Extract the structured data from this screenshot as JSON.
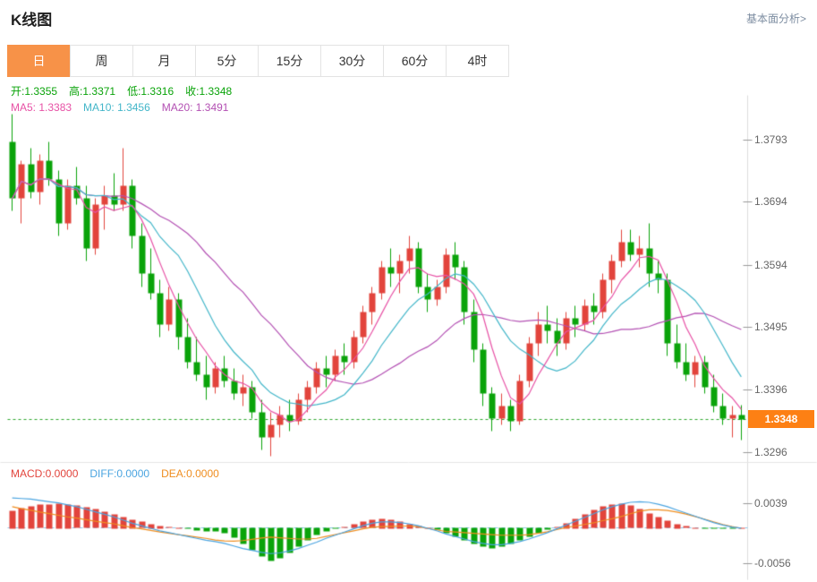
{
  "header": {
    "title": "K线图",
    "link_label": "基本面分析>"
  },
  "tabs": {
    "active_index": 0,
    "items": [
      {
        "key": "day",
        "label": "日"
      },
      {
        "key": "week",
        "label": "周"
      },
      {
        "key": "month",
        "label": "月"
      },
      {
        "key": "5min",
        "label": "5分"
      },
      {
        "key": "15min",
        "label": "15分"
      },
      {
        "key": "30min",
        "label": "30分"
      },
      {
        "key": "60min",
        "label": "60分"
      },
      {
        "key": "4hour",
        "label": "4时"
      }
    ]
  },
  "ohlc_legend": {
    "color": "#0aa30a",
    "items": [
      {
        "key": "open-value",
        "label": "开:",
        "value": "1.3355"
      },
      {
        "key": "high-value",
        "label": "高:",
        "value": "1.3371"
      },
      {
        "key": "low-value",
        "label": "低:",
        "value": "1.3316"
      },
      {
        "key": "close-value",
        "label": "收:",
        "value": "1.3348"
      }
    ]
  },
  "ma_legend": {
    "items": [
      {
        "key": "ma5-value",
        "label": "MA5: ",
        "value": "1.3383",
        "color": "#e751a5"
      },
      {
        "key": "ma10-value",
        "label": "MA10: ",
        "value": "1.3456",
        "color": "#43b6c9"
      },
      {
        "key": "ma20-value",
        "label": "MA20: ",
        "value": "1.3491",
        "color": "#b350b3"
      }
    ]
  },
  "macd_legend": {
    "items": [
      {
        "key": "macd-value",
        "label": "MACD:",
        "value": "0.0000",
        "color": "#e2443c"
      },
      {
        "key": "diff-value",
        "label": "DIFF:",
        "value": "0.0000",
        "color": "#4aa4e0"
      },
      {
        "key": "dea-value",
        "label": "DEA:",
        "value": "0.0000",
        "color": "#ef8d1f"
      }
    ]
  },
  "price_axis": {
    "ticks": [
      {
        "text": "1.3793",
        "value": 1.3793
      },
      {
        "text": "1.3694",
        "value": 1.3694
      },
      {
        "text": "1.3594",
        "value": 1.3594
      },
      {
        "text": "1.3495",
        "value": 1.3495
      },
      {
        "text": "1.3396",
        "value": 1.3396
      },
      {
        "text": "1.3296",
        "value": 1.3296
      }
    ],
    "current": {
      "text": "1.3348",
      "value": 1.3348
    }
  },
  "macd_axis": {
    "ticks": [
      {
        "text": "0.0039",
        "value": 0.0039
      },
      {
        "text": "-0.0056",
        "value": -0.0056
      }
    ]
  },
  "colors": {
    "up": "#e2443c",
    "down": "#0aa30a",
    "ma5": "#e751a5",
    "ma10": "#43b6c9",
    "ma20": "#b350b3",
    "diff": "#4aa4e0",
    "dea": "#ef8d1f",
    "dotted": "#2ba52b",
    "badge": "#fd8014",
    "tab_active": "#f79248",
    "axis_text": "#666666"
  },
  "chart_data": {
    "type": "candlestick",
    "title": "K线图",
    "period": "日",
    "last_ohlc": {
      "open": 1.3355,
      "high": 1.3371,
      "low": 1.3316,
      "close": 1.3348
    },
    "price_range": [
      1.328,
      1.385
    ],
    "y_ticks": [
      1.3793,
      1.3694,
      1.3594,
      1.3495,
      1.3396,
      1.3296
    ],
    "candles": [
      [
        1.379,
        1.3835,
        1.368,
        1.37
      ],
      [
        1.37,
        1.376,
        1.366,
        1.3755
      ],
      [
        1.3755,
        1.378,
        1.37,
        1.371
      ],
      [
        1.371,
        1.377,
        1.369,
        1.376
      ],
      [
        1.376,
        1.379,
        1.372,
        1.373
      ],
      [
        1.373,
        1.3745,
        1.364,
        1.366
      ],
      [
        1.366,
        1.373,
        1.365,
        1.372
      ],
      [
        1.372,
        1.375,
        1.369,
        1.37
      ],
      [
        1.37,
        1.372,
        1.36,
        1.362
      ],
      [
        1.362,
        1.37,
        1.361,
        1.369
      ],
      [
        1.369,
        1.372,
        1.365,
        1.3705
      ],
      [
        1.3705,
        1.374,
        1.368,
        1.369
      ],
      [
        1.369,
        1.378,
        1.368,
        1.372
      ],
      [
        1.372,
        1.373,
        1.362,
        1.364
      ],
      [
        1.364,
        1.366,
        1.356,
        1.358
      ],
      [
        1.358,
        1.362,
        1.354,
        1.355
      ],
      [
        1.355,
        1.357,
        1.348,
        1.35
      ],
      [
        1.35,
        1.356,
        1.349,
        1.354
      ],
      [
        1.354,
        1.355,
        1.346,
        1.348
      ],
      [
        1.348,
        1.351,
        1.343,
        1.344
      ],
      [
        1.344,
        1.348,
        1.341,
        1.342
      ],
      [
        1.342,
        1.345,
        1.338,
        1.34
      ],
      [
        1.34,
        1.344,
        1.339,
        1.343
      ],
      [
        1.343,
        1.345,
        1.34,
        1.341
      ],
      [
        1.341,
        1.343,
        1.338,
        1.339
      ],
      [
        1.339,
        1.342,
        1.337,
        1.34
      ],
      [
        1.34,
        1.341,
        1.335,
        1.336
      ],
      [
        1.336,
        1.338,
        1.33,
        1.332
      ],
      [
        1.332,
        1.336,
        1.329,
        1.334
      ],
      [
        1.334,
        1.337,
        1.332,
        1.3355
      ],
      [
        1.3355,
        1.338,
        1.333,
        1.3345
      ],
      [
        1.3345,
        1.339,
        1.334,
        1.338
      ],
      [
        1.338,
        1.341,
        1.336,
        1.34
      ],
      [
        1.34,
        1.344,
        1.339,
        1.343
      ],
      [
        1.343,
        1.345,
        1.34,
        1.342
      ],
      [
        1.342,
        1.346,
        1.341,
        1.345
      ],
      [
        1.345,
        1.347,
        1.342,
        1.344
      ],
      [
        1.344,
        1.349,
        1.343,
        1.348
      ],
      [
        1.348,
        1.353,
        1.347,
        1.352
      ],
      [
        1.352,
        1.356,
        1.35,
        1.355
      ],
      [
        1.355,
        1.36,
        1.354,
        1.359
      ],
      [
        1.359,
        1.362,
        1.356,
        1.358
      ],
      [
        1.358,
        1.361,
        1.355,
        1.36
      ],
      [
        1.36,
        1.364,
        1.358,
        1.362
      ],
      [
        1.362,
        1.363,
        1.355,
        1.356
      ],
      [
        1.356,
        1.358,
        1.352,
        1.354
      ],
      [
        1.354,
        1.357,
        1.353,
        1.356
      ],
      [
        1.356,
        1.362,
        1.355,
        1.361
      ],
      [
        1.361,
        1.363,
        1.357,
        1.359
      ],
      [
        1.359,
        1.36,
        1.35,
        1.352
      ],
      [
        1.352,
        1.354,
        1.344,
        1.346
      ],
      [
        1.346,
        1.347,
        1.337,
        1.339
      ],
      [
        1.339,
        1.34,
        1.333,
        1.335
      ],
      [
        1.335,
        1.339,
        1.334,
        1.337
      ],
      [
        1.337,
        1.338,
        1.333,
        1.3345
      ],
      [
        1.3345,
        1.342,
        1.334,
        1.341
      ],
      [
        1.341,
        1.348,
        1.34,
        1.347
      ],
      [
        1.347,
        1.352,
        1.345,
        1.35
      ],
      [
        1.35,
        1.353,
        1.347,
        1.349
      ],
      [
        1.349,
        1.351,
        1.345,
        1.347
      ],
      [
        1.347,
        1.352,
        1.346,
        1.351
      ],
      [
        1.351,
        1.353,
        1.348,
        1.35
      ],
      [
        1.35,
        1.354,
        1.349,
        1.353
      ],
      [
        1.353,
        1.355,
        1.35,
        1.352
      ],
      [
        1.352,
        1.358,
        1.351,
        1.357
      ],
      [
        1.357,
        1.361,
        1.355,
        1.36
      ],
      [
        1.36,
        1.365,
        1.359,
        1.363
      ],
      [
        1.363,
        1.365,
        1.36,
        1.361
      ],
      [
        1.361,
        1.364,
        1.359,
        1.362
      ],
      [
        1.362,
        1.366,
        1.356,
        1.358
      ],
      [
        1.358,
        1.36,
        1.355,
        1.357
      ],
      [
        1.357,
        1.358,
        1.345,
        1.347
      ],
      [
        1.347,
        1.35,
        1.343,
        1.344
      ],
      [
        1.344,
        1.347,
        1.341,
        1.342
      ],
      [
        1.342,
        1.345,
        1.34,
        1.344
      ],
      [
        1.344,
        1.345,
        1.339,
        1.34
      ],
      [
        1.34,
        1.342,
        1.336,
        1.337
      ],
      [
        1.337,
        1.339,
        1.334,
        1.335
      ],
      [
        1.335,
        1.337,
        1.332,
        1.3355
      ],
      [
        1.3355,
        1.3371,
        1.3316,
        1.3348
      ]
    ],
    "ma_periods": [
      5,
      10,
      20
    ],
    "macd": {
      "range": [
        -0.008,
        0.007
      ],
      "histogram": [
        0.0028,
        0.0032,
        0.0035,
        0.0037,
        0.0038,
        0.0039,
        0.0038,
        0.0036,
        0.0033,
        0.003,
        0.0026,
        0.0022,
        0.0018,
        0.0014,
        0.001,
        0.0007,
        0.0004,
        0.0002,
        0.0,
        -0.0002,
        -0.0004,
        -0.0006,
        -0.0005,
        -0.0008,
        -0.0015,
        -0.0025,
        -0.0035,
        -0.0045,
        -0.0052,
        -0.0048,
        -0.004,
        -0.003,
        -0.002,
        -0.0012,
        -0.0006,
        -0.0002,
        0.0002,
        0.0006,
        0.001,
        0.0013,
        0.0015,
        0.0014,
        0.0011,
        0.0007,
        0.0003,
        0.0,
        -0.0003,
        -0.0008,
        -0.0014,
        -0.002,
        -0.0026,
        -0.003,
        -0.0032,
        -0.003,
        -0.0026,
        -0.002,
        -0.0014,
        -0.0008,
        -0.0003,
        0.0002,
        0.0008,
        0.0015,
        0.0022,
        0.0029,
        0.0034,
        0.0038,
        0.0039,
        0.0036,
        0.003,
        0.0024,
        0.0018,
        0.0012,
        0.0007,
        0.0003,
        0.0001,
        -0.0001,
        -0.0002,
        -0.0002,
        -0.0001,
        0.0
      ],
      "diff": [
        0.0048,
        0.0047,
        0.0046,
        0.0044,
        0.0042,
        0.004,
        0.0037,
        0.0034,
        0.003,
        0.0026,
        0.0022,
        0.0018,
        0.0013,
        0.0008,
        0.0004,
        0.0,
        -0.0004,
        -0.0007,
        -0.001,
        -0.0013,
        -0.0016,
        -0.0019,
        -0.0021,
        -0.0024,
        -0.0028,
        -0.0032,
        -0.0035,
        -0.0038,
        -0.004,
        -0.0039,
        -0.0036,
        -0.0032,
        -0.0027,
        -0.0022,
        -0.0016,
        -0.0011,
        -0.0006,
        -0.0001,
        0.0004,
        0.0008,
        0.001,
        0.001,
        0.0009,
        0.0007,
        0.0004,
        0.0,
        -0.0004,
        -0.0009,
        -0.0013,
        -0.0017,
        -0.0021,
        -0.0024,
        -0.0026,
        -0.0026,
        -0.0024,
        -0.0021,
        -0.0017,
        -0.0012,
        -0.0007,
        -0.0001,
        0.0005,
        0.0011,
        0.0017,
        0.0023,
        0.0029,
        0.0034,
        0.0038,
        0.0041,
        0.0042,
        0.0041,
        0.0038,
        0.0034,
        0.0029,
        0.0024,
        0.0019,
        0.0014,
        0.0009,
        0.0005,
        0.0002,
        0.0
      ]
    }
  }
}
